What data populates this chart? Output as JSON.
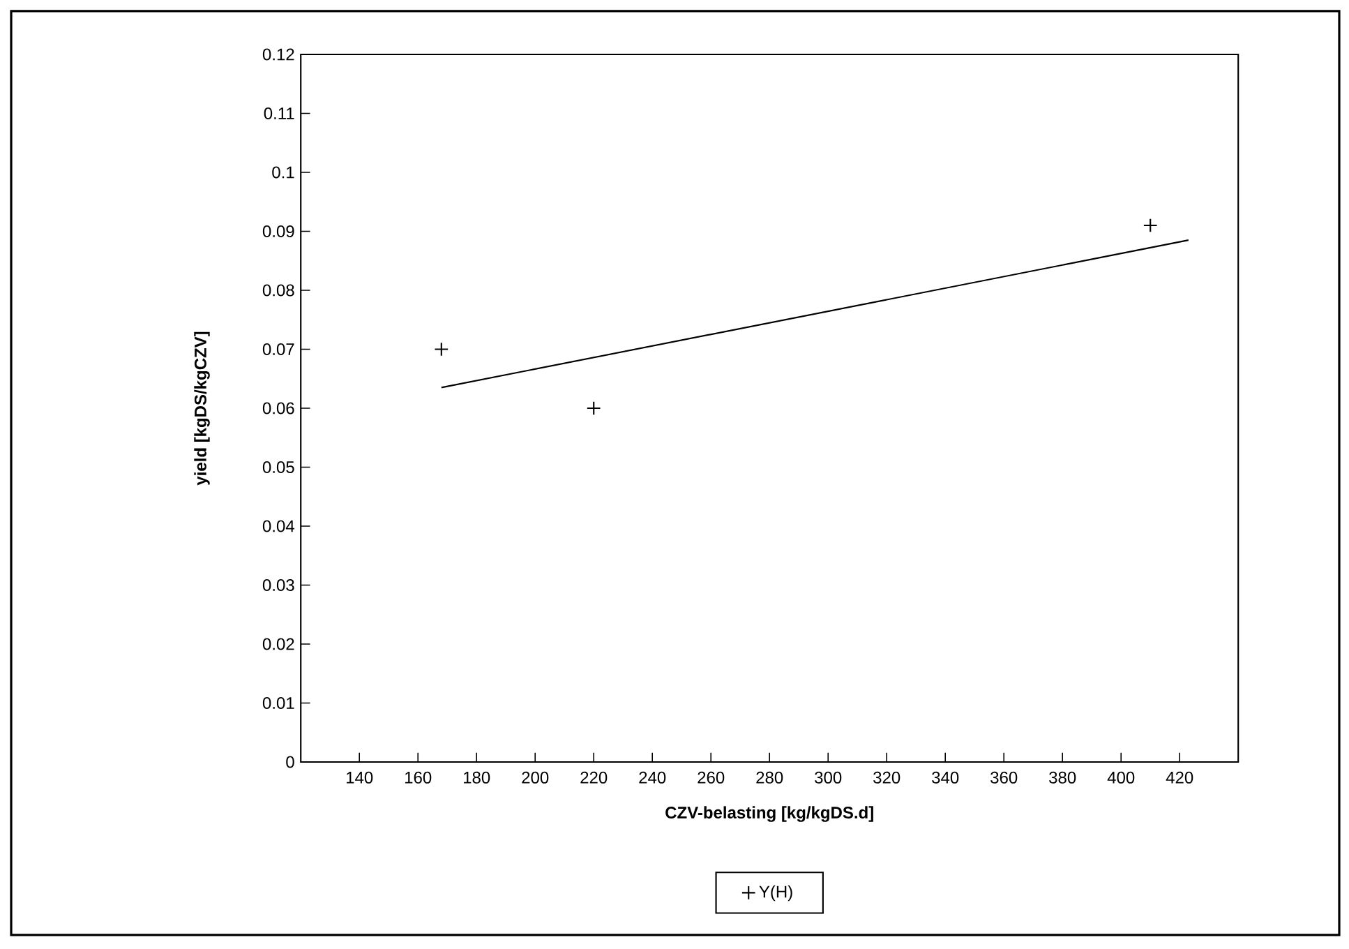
{
  "chart_data": {
    "type": "scatter",
    "xlabel": "CZV-belasting  [kg/kgDS.d]",
    "ylabel": "yield [kgDS/kgCZV]",
    "xlim": [
      120,
      440
    ],
    "xticks": [
      140,
      160,
      180,
      200,
      220,
      240,
      260,
      280,
      300,
      320,
      340,
      360,
      380,
      400,
      420
    ],
    "ylim": [
      0,
      0.12
    ],
    "yticks": [
      0,
      0.01,
      0.02,
      0.03,
      0.04,
      0.05,
      0.06,
      0.07,
      0.08,
      0.09,
      0.1,
      0.11,
      0.12
    ],
    "legend": "bottom",
    "grid": false,
    "series": [
      {
        "name": "Y(H)",
        "marker": "cross",
        "color": "#000000",
        "x": [
          168,
          220,
          410
        ],
        "values": [
          0.07,
          0.06,
          0.091
        ]
      },
      {
        "type": "line",
        "line_style": "solid",
        "marker": "none",
        "color": "#000000",
        "x": [
          168,
          423
        ],
        "values": [
          0.0635,
          0.0885
        ]
      }
    ]
  }
}
